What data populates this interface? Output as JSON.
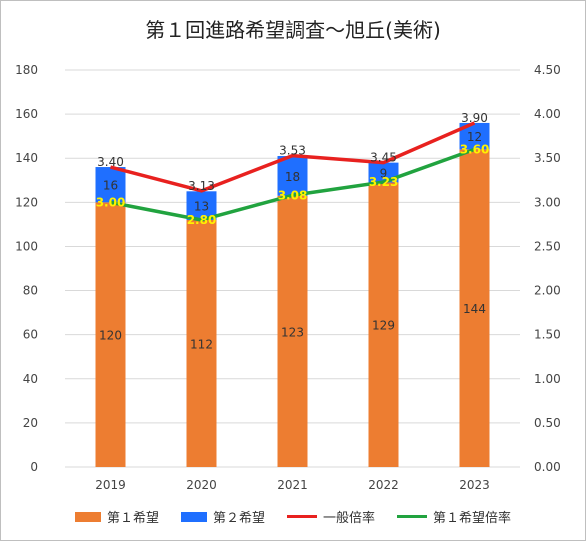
{
  "chart_data": {
    "type": "bar",
    "title": "第１回進路希望調査～旭丘(美術)",
    "categories": [
      "2019",
      "2020",
      "2021",
      "2022",
      "2023"
    ],
    "y_left": {
      "ylim": [
        0,
        180
      ],
      "ticks": [
        "0",
        "20",
        "40",
        "60",
        "80",
        "100",
        "120",
        "140",
        "160",
        "180"
      ]
    },
    "y_right": {
      "ylim": [
        0,
        4.5
      ],
      "ticks": [
        "0.00",
        "0.50",
        "1.00",
        "1.50",
        "2.00",
        "2.50",
        "3.00",
        "3.50",
        "4.00",
        "4.50"
      ]
    },
    "series": [
      {
        "name": "第１希望",
        "kind": "bar-stacked",
        "axis": "left",
        "color": "#ED7D31",
        "values": [
          120,
          112,
          123,
          129,
          144
        ],
        "labels": [
          "120",
          "112",
          "123",
          "129",
          "144"
        ]
      },
      {
        "name": "第２希望",
        "kind": "bar-stacked",
        "axis": "left",
        "color": "#1F6FFF",
        "values": [
          16,
          13,
          18,
          9,
          12
        ],
        "labels": [
          "16",
          "13",
          "18",
          "9",
          "12"
        ]
      },
      {
        "name": "一般倍率",
        "kind": "line",
        "axis": "right",
        "color": "#E8211F",
        "values": [
          3.4,
          3.13,
          3.53,
          3.45,
          3.9
        ],
        "labels": [
          "3.40",
          "3.13",
          "3.53",
          "3.45",
          "3.90"
        ]
      },
      {
        "name": "第１希望倍率",
        "kind": "line",
        "axis": "right",
        "color": "#21A33F",
        "values": [
          3.0,
          2.8,
          3.08,
          3.23,
          3.6
        ],
        "labels": [
          "3.00",
          "2.80",
          "3.08",
          "3.23",
          "3.60"
        ]
      }
    ],
    "grid": true,
    "legend": "bottom"
  }
}
